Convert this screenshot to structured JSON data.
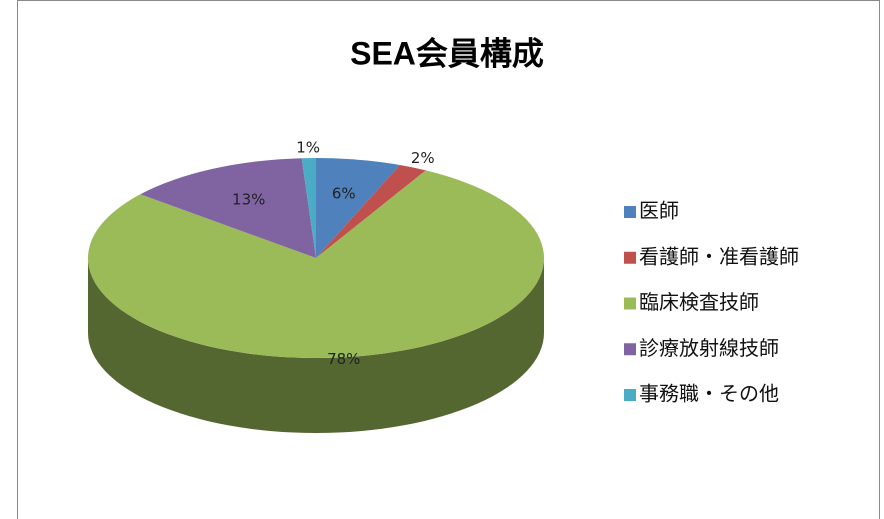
{
  "chart_data": {
    "type": "pie",
    "title": "SEA会員構成",
    "categories": [
      "医師",
      "看護師・准看護師",
      "臨床検査技師",
      "診療放射線技師",
      "事務職・その他"
    ],
    "values": [
      6,
      2,
      78,
      13,
      1
    ],
    "value_labels": [
      "6%",
      "2%",
      "78%",
      "13%",
      "1%"
    ],
    "colors": [
      "#4f81bd",
      "#c0504d",
      "#9bbb59",
      "#8064a2",
      "#4bacc6"
    ],
    "legend": "right"
  }
}
